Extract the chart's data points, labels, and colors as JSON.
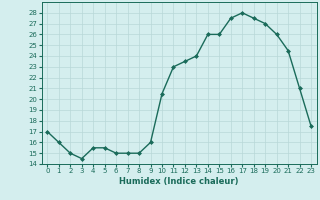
{
  "x": [
    0,
    1,
    2,
    3,
    4,
    5,
    6,
    7,
    8,
    9,
    10,
    11,
    12,
    13,
    14,
    15,
    16,
    17,
    18,
    19,
    20,
    21,
    22,
    23
  ],
  "y": [
    17,
    16,
    15,
    14.5,
    15.5,
    15.5,
    15,
    15,
    15,
    16,
    20.5,
    23,
    23.5,
    24,
    26,
    26,
    27.5,
    28,
    27.5,
    27,
    26,
    24.5,
    21,
    17.5
  ],
  "xlabel": "Humidex (Indice chaleur)",
  "ylabel": "",
  "line_color": "#1a6b5a",
  "marker_color": "#1a6b5a",
  "bg_color": "#d4eeee",
  "grid_color": "#b8d8d8",
  "ylim": [
    14,
    29
  ],
  "xlim": [
    -0.5,
    23.5
  ],
  "yticks": [
    14,
    15,
    16,
    17,
    18,
    19,
    20,
    21,
    22,
    23,
    24,
    25,
    26,
    27,
    28
  ],
  "xticks": [
    0,
    1,
    2,
    3,
    4,
    5,
    6,
    7,
    8,
    9,
    10,
    11,
    12,
    13,
    14,
    15,
    16,
    17,
    18,
    19,
    20,
    21,
    22,
    23
  ],
  "tick_fontsize": 5.0,
  "xlabel_fontsize": 6.0,
  "linewidth": 1.0,
  "markersize": 2.0
}
